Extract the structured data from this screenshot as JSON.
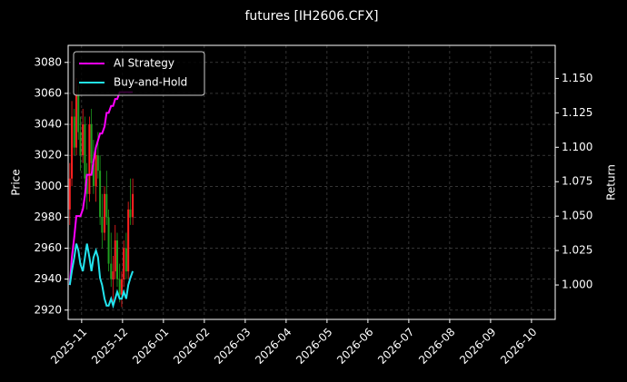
{
  "chart_data": {
    "type": "candlestick",
    "title": "futures [IH2606.CFX]",
    "ylabel": "Price",
    "y2label": "Return",
    "x": [
      -0.29,
      -0.24,
      -0.18,
      -0.13,
      -0.08,
      -0.03,
      0.03,
      0.08,
      0.13,
      0.19,
      0.24,
      0.29,
      0.35,
      0.4,
      0.45,
      0.5,
      0.56,
      0.61,
      0.66,
      0.72,
      0.77,
      0.82,
      0.87,
      0.93,
      0.98,
      1.03,
      1.09,
      1.14,
      1.19,
      1.25
    ],
    "open": [
      2985,
      3005,
      3045,
      3025,
      3060,
      3035,
      3020,
      3040,
      3005,
      2995,
      3040,
      3015,
      3000,
      3020,
      3010,
      2980,
      2970,
      2995,
      2980,
      2950,
      2940,
      2945,
      2965,
      2940,
      2930,
      2940,
      2960,
      2945,
      2985,
      2980
    ],
    "high": [
      3015,
      3055,
      3050,
      3070,
      3065,
      3045,
      3050,
      3045,
      3015,
      3045,
      3050,
      3030,
      3025,
      3035,
      3020,
      2995,
      3000,
      3010,
      2985,
      2970,
      2955,
      2975,
      2970,
      2950,
      2945,
      2965,
      2970,
      2990,
      3005,
      3005
    ],
    "low": [
      2975,
      3000,
      3020,
      3020,
      3030,
      3010,
      3015,
      3000,
      2985,
      2990,
      3010,
      2995,
      2990,
      3005,
      2975,
      2960,
      2965,
      2975,
      2945,
      2935,
      2925,
      2940,
      2935,
      2925,
      2922,
      2935,
      2940,
      2940,
      2975,
      2975
    ],
    "close": [
      3005,
      3045,
      3025,
      3060,
      3035,
      3020,
      3040,
      3005,
      2995,
      3040,
      3015,
      3000,
      3020,
      3010,
      2980,
      2970,
      2995,
      2980,
      2950,
      2940,
      2945,
      2965,
      2940,
      2930,
      2940,
      2960,
      2945,
      2985,
      2980,
      2995
    ],
    "up_color": "#ff2020",
    "down_color": "#1f9f1f",
    "series": [
      {
        "name": "AI Strategy",
        "color": "#ff00ff",
        "axis": "y2",
        "values": [
          1.0,
          1.02,
          1.035,
          1.05,
          1.05,
          1.05,
          1.055,
          1.065,
          1.08,
          1.08,
          1.08,
          1.09,
          1.1,
          1.105,
          1.11,
          1.11,
          1.115,
          1.125,
          1.125,
          1.13,
          1.13,
          1.135,
          1.135,
          1.14,
          1.14,
          1.14,
          1.14,
          1.14,
          1.14,
          1.14
        ]
      },
      {
        "name": "Buy-and-Hold",
        "color": "#22e4ee",
        "axis": "y2",
        "values": [
          1.0,
          1.01,
          1.02,
          1.03,
          1.025,
          1.015,
          1.01,
          1.02,
          1.03,
          1.02,
          1.01,
          1.02,
          1.025,
          1.02,
          1.005,
          1.0,
          0.99,
          0.985,
          0.985,
          0.99,
          0.985,
          0.99,
          0.995,
          0.99,
          0.99,
          0.995,
          0.99,
          1.0,
          1.005,
          1.01
        ]
      }
    ],
    "xlim": [
      -0.33,
      11.58
    ],
    "xticks": [
      {
        "value": 0,
        "label": "2025-11"
      },
      {
        "value": 1,
        "label": "2025-12"
      },
      {
        "value": 2,
        "label": "2026-01"
      },
      {
        "value": 3,
        "label": "2026-02"
      },
      {
        "value": 4,
        "label": "2026-03"
      },
      {
        "value": 5,
        "label": "2026-04"
      },
      {
        "value": 6,
        "label": "2026-05"
      },
      {
        "value": 7,
        "label": "2026-06"
      },
      {
        "value": 8,
        "label": "2026-07"
      },
      {
        "value": 9,
        "label": "2026-08"
      },
      {
        "value": 10,
        "label": "2026-09"
      },
      {
        "value": 11,
        "label": "2026-10"
      }
    ],
    "ylim": [
      2914,
      3091
    ],
    "yticks": [
      2920,
      2940,
      2960,
      2980,
      3000,
      3020,
      3040,
      3060,
      3080
    ],
    "y2lim": [
      0.975,
      1.174
    ],
    "y2ticks": [
      {
        "value": 1,
        "label": "1.000"
      },
      {
        "value": 1.025,
        "label": "1.025"
      },
      {
        "value": 1.05,
        "label": "1.050"
      },
      {
        "value": 1.075,
        "label": "1.075"
      },
      {
        "value": 1.1,
        "label": "1.100"
      },
      {
        "value": 1.125,
        "label": "1.125"
      },
      {
        "value": 1.15,
        "label": "1.150"
      }
    ],
    "grid": true,
    "legend": "upper-left"
  }
}
